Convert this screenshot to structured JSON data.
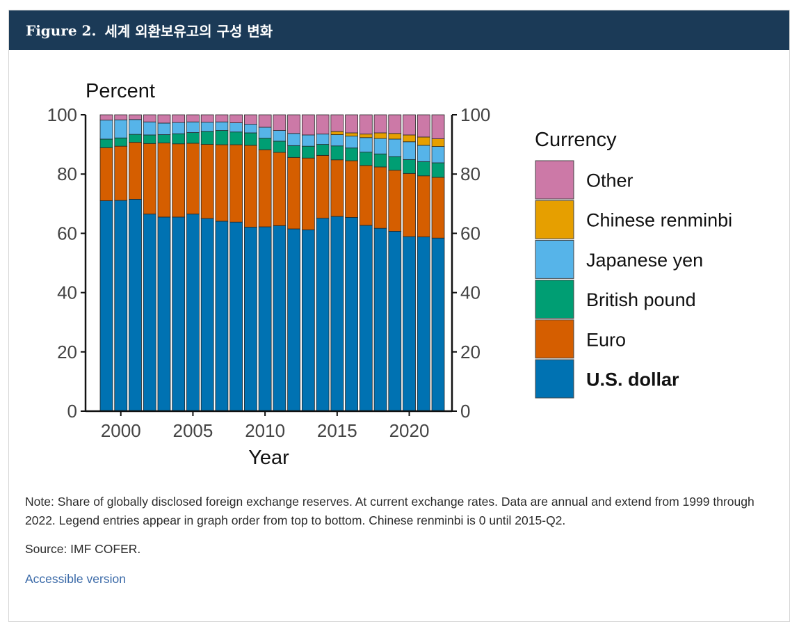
{
  "figure": {
    "number": "Figure 2.",
    "title": "세계 외환보유고의 구성 변화"
  },
  "note": "Note: Share of globally disclosed foreign exchange reserves. At current exchange rates. Data are annual and extend from 1999 through 2022. Legend entries appear in graph order from top to bottom. Chinese renminbi is 0 until 2015-Q2.",
  "source": "Source: IMF COFER.",
  "accessible_link": "Accessible version",
  "chart_data": {
    "type": "bar",
    "stacked": true,
    "title": "",
    "ylabel": "Percent",
    "xlabel": "Year",
    "ylim": [
      0,
      100
    ],
    "yticks": [
      0,
      20,
      40,
      60,
      80,
      100
    ],
    "xticks": [
      2000,
      2005,
      2010,
      2015,
      2020
    ],
    "grid": false,
    "legend_title": "Currency",
    "legend_position": "right",
    "categories": [
      1999,
      2000,
      2001,
      2002,
      2003,
      2004,
      2005,
      2006,
      2007,
      2008,
      2009,
      2010,
      2011,
      2012,
      2013,
      2014,
      2015,
      2016,
      2017,
      2018,
      2019,
      2020,
      2021,
      2022
    ],
    "series": [
      {
        "name": "U.S. dollar",
        "color": "#0072b2",
        "bold": true,
        "values": [
          71.0,
          71.1,
          71.5,
          66.5,
          65.5,
          65.5,
          66.5,
          65.0,
          64.1,
          63.8,
          62.1,
          62.2,
          62.6,
          61.5,
          61.2,
          65.1,
          65.7,
          65.4,
          62.7,
          61.7,
          60.7,
          58.9,
          58.8,
          58.4
        ]
      },
      {
        "name": "Euro",
        "color": "#d55e00",
        "values": [
          17.9,
          18.3,
          19.2,
          23.8,
          25.0,
          24.7,
          23.9,
          25.0,
          25.8,
          26.1,
          27.6,
          26.0,
          24.7,
          24.1,
          24.2,
          21.2,
          19.1,
          19.1,
          20.2,
          20.7,
          20.6,
          21.3,
          20.6,
          20.5
        ]
      },
      {
        "name": "British pound",
        "color": "#009e73",
        "values": [
          2.9,
          2.8,
          2.7,
          2.9,
          2.8,
          3.4,
          3.6,
          4.4,
          4.8,
          4.3,
          4.2,
          3.9,
          3.8,
          4.0,
          4.0,
          3.7,
          4.7,
          4.3,
          4.5,
          4.4,
          4.6,
          4.7,
          4.8,
          4.9
        ]
      },
      {
        "name": "Japanese yen",
        "color": "#56b4e9",
        "values": [
          6.4,
          6.1,
          5.0,
          4.4,
          3.9,
          3.8,
          3.6,
          3.1,
          2.9,
          3.1,
          2.9,
          3.7,
          3.6,
          4.1,
          3.8,
          3.5,
          3.8,
          4.0,
          4.9,
          5.2,
          5.9,
          6.0,
          5.5,
          5.5
        ]
      },
      {
        "name": "Chinese renminbi",
        "color": "#e69f00",
        "values": [
          0,
          0,
          0,
          0,
          0,
          0,
          0,
          0,
          0,
          0,
          0,
          0,
          0,
          0,
          0,
          0,
          1.1,
          1.1,
          1.2,
          1.9,
          1.9,
          2.3,
          2.8,
          2.6
        ]
      },
      {
        "name": "Other",
        "color": "#cc79a7",
        "values": [
          1.8,
          1.7,
          1.6,
          2.4,
          2.8,
          2.6,
          2.4,
          2.5,
          2.4,
          2.7,
          3.2,
          4.2,
          5.3,
          6.3,
          6.8,
          6.5,
          5.6,
          6.1,
          6.5,
          6.1,
          6.3,
          6.8,
          7.5,
          8.1
        ]
      }
    ]
  }
}
